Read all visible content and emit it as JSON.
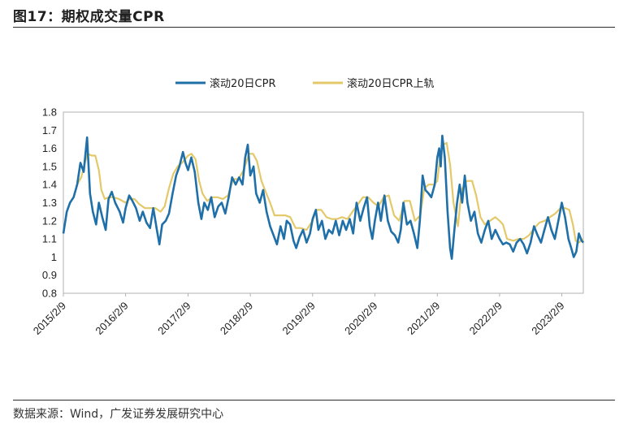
{
  "header": {
    "title": "图17：期权成交量CPR"
  },
  "footer": {
    "source": "数据来源：Wind，广发证券发展研究中心"
  },
  "colors": {
    "series1": "#1f6fa8",
    "series2": "#e3c96a",
    "axis": "#b0b0b0"
  },
  "chart_data": {
    "type": "line",
    "title": "",
    "xlabel": "",
    "ylabel": "",
    "ylim": [
      0.8,
      1.8
    ],
    "yticks": [
      0.8,
      0.9,
      1.0,
      1.1,
      1.2,
      1.3,
      1.4,
      1.5,
      1.6,
      1.7,
      1.8
    ],
    "ytick_labels": [
      "0.8",
      "0.9",
      "1",
      "1.1",
      "1.2",
      "1.3",
      "1.4",
      "1.5",
      "1.6",
      "1.7",
      "1.8"
    ],
    "xlim": [
      "2015/2/9",
      "2023/6/15"
    ],
    "xticks": [
      "2015/2/9",
      "2016/2/9",
      "2017/2/9",
      "2018/2/9",
      "2019/2/9",
      "2020/2/9",
      "2021/2/9",
      "2022/2/9",
      "2023/2/9"
    ],
    "legend_position": "top-center",
    "series": [
      {
        "name": "滚动20日CPR",
        "color": "#1f6fa8",
        "points": [
          [
            "2015/2/9",
            1.13
          ],
          [
            "2015/3/1",
            1.25
          ],
          [
            "2015/3/20",
            1.3
          ],
          [
            "2015/4/10",
            1.33
          ],
          [
            "2015/5/1",
            1.4
          ],
          [
            "2015/5/20",
            1.52
          ],
          [
            "2015/6/8",
            1.47
          ],
          [
            "2015/6/28",
            1.66
          ],
          [
            "2015/7/15",
            1.35
          ],
          [
            "2015/8/1",
            1.25
          ],
          [
            "2015/8/20",
            1.18
          ],
          [
            "2015/9/5",
            1.3
          ],
          [
            "2015/9/25",
            1.22
          ],
          [
            "2015/10/15",
            1.15
          ],
          [
            "2015/11/1",
            1.32
          ],
          [
            "2015/11/20",
            1.36
          ],
          [
            "2015/12/10",
            1.3
          ],
          [
            "2016/1/5",
            1.25
          ],
          [
            "2016/1/25",
            1.19
          ],
          [
            "2016/2/9",
            1.27
          ],
          [
            "2016/3/1",
            1.34
          ],
          [
            "2016/3/20",
            1.31
          ],
          [
            "2016/4/10",
            1.27
          ],
          [
            "2016/5/1",
            1.2
          ],
          [
            "2016/5/20",
            1.25
          ],
          [
            "2016/6/10",
            1.19
          ],
          [
            "2016/7/1",
            1.16
          ],
          [
            "2016/7/20",
            1.27
          ],
          [
            "2016/8/10",
            1.15
          ],
          [
            "2016/8/25",
            1.07
          ],
          [
            "2016/9/10",
            1.18
          ],
          [
            "2016/10/1",
            1.2
          ],
          [
            "2016/10/20",
            1.24
          ],
          [
            "2016/11/10",
            1.35
          ],
          [
            "2016/12/1",
            1.45
          ],
          [
            "2016/12/20",
            1.5
          ],
          [
            "2017/1/10",
            1.58
          ],
          [
            "2017/1/25",
            1.52
          ],
          [
            "2017/2/9",
            1.48
          ],
          [
            "2017/2/28",
            1.55
          ],
          [
            "2017/3/20",
            1.47
          ],
          [
            "2017/4/10",
            1.3
          ],
          [
            "2017/4/28",
            1.21
          ],
          [
            "2017/5/15",
            1.3
          ],
          [
            "2017/6/5",
            1.26
          ],
          [
            "2017/6/25",
            1.33
          ],
          [
            "2017/7/15",
            1.22
          ],
          [
            "2017/8/5",
            1.28
          ],
          [
            "2017/8/25",
            1.3
          ],
          [
            "2017/9/15",
            1.24
          ],
          [
            "2017/10/5",
            1.33
          ],
          [
            "2017/10/25",
            1.44
          ],
          [
            "2017/11/15",
            1.4
          ],
          [
            "2017/12/5",
            1.44
          ],
          [
            "2017/12/25",
            1.4
          ],
          [
            "2018/1/10",
            1.55
          ],
          [
            "2018/1/25",
            1.62
          ],
          [
            "2018/2/9",
            1.45
          ],
          [
            "2018/2/28",
            1.5
          ],
          [
            "2018/3/15",
            1.35
          ],
          [
            "2018/4/5",
            1.3
          ],
          [
            "2018/4/25",
            1.37
          ],
          [
            "2018/5/15",
            1.25
          ],
          [
            "2018/6/5",
            1.17
          ],
          [
            "2018/6/25",
            1.12
          ],
          [
            "2018/7/15",
            1.07
          ],
          [
            "2018/8/5",
            1.17
          ],
          [
            "2018/8/25",
            1.1
          ],
          [
            "2018/9/10",
            1.2
          ],
          [
            "2018/9/30",
            1.18
          ],
          [
            "2018/10/20",
            1.09
          ],
          [
            "2018/11/5",
            1.05
          ],
          [
            "2018/11/25",
            1.11
          ],
          [
            "2018/12/15",
            1.15
          ],
          [
            "2019/1/5",
            1.08
          ],
          [
            "2019/1/25",
            1.13
          ],
          [
            "2019/2/9",
            1.21
          ],
          [
            "2019/2/28",
            1.26
          ],
          [
            "2019/3/15",
            1.15
          ],
          [
            "2019/4/5",
            1.2
          ],
          [
            "2019/4/25",
            1.1
          ],
          [
            "2019/5/15",
            1.15
          ],
          [
            "2019/6/5",
            1.13
          ],
          [
            "2019/6/25",
            1.2
          ],
          [
            "2019/7/15",
            1.12
          ],
          [
            "2019/8/5",
            1.2
          ],
          [
            "2019/8/25",
            1.15
          ],
          [
            "2019/9/15",
            1.21
          ],
          [
            "2019/10/5",
            1.13
          ],
          [
            "2019/10/25",
            1.3
          ],
          [
            "2019/11/15",
            1.2
          ],
          [
            "2019/12/5",
            1.27
          ],
          [
            "2019/12/25",
            1.33
          ],
          [
            "2020/1/10",
            1.17
          ],
          [
            "2020/1/25",
            1.1
          ],
          [
            "2020/2/9",
            1.2
          ],
          [
            "2020/2/28",
            1.3
          ],
          [
            "2020/3/15",
            1.2
          ],
          [
            "2020/4/5",
            1.34
          ],
          [
            "2020/4/25",
            1.2
          ],
          [
            "2020/5/15",
            1.14
          ],
          [
            "2020/6/5",
            1.12
          ],
          [
            "2020/6/25",
            1.08
          ],
          [
            "2020/7/10",
            1.15
          ],
          [
            "2020/7/25",
            1.3
          ],
          [
            "2020/8/15",
            1.18
          ],
          [
            "2020/9/5",
            1.2
          ],
          [
            "2020/9/25",
            1.13
          ],
          [
            "2020/10/15",
            1.05
          ],
          [
            "2020/10/30",
            1.2
          ],
          [
            "2020/11/15",
            1.45
          ],
          [
            "2020/12/1",
            1.37
          ],
          [
            "2020/12/20",
            1.35
          ],
          [
            "2021/1/5",
            1.33
          ],
          [
            "2021/1/25",
            1.4
          ],
          [
            "2021/2/9",
            1.55
          ],
          [
            "2021/2/20",
            1.6
          ],
          [
            "2021/3/1",
            1.5
          ],
          [
            "2021/3/10",
            1.67
          ],
          [
            "2021/3/25",
            1.55
          ],
          [
            "2021/4/10",
            1.25
          ],
          [
            "2021/4/25",
            1.05
          ],
          [
            "2021/5/5",
            0.99
          ],
          [
            "2021/5/20",
            1.15
          ],
          [
            "2021/6/5",
            1.3
          ],
          [
            "2021/6/20",
            1.4
          ],
          [
            "2021/7/5",
            1.3
          ],
          [
            "2021/7/20",
            1.45
          ],
          [
            "2021/8/5",
            1.3
          ],
          [
            "2021/8/25",
            1.2
          ],
          [
            "2021/9/15",
            1.25
          ],
          [
            "2021/10/5",
            1.13
          ],
          [
            "2021/10/25",
            1.08
          ],
          [
            "2021/11/15",
            1.15
          ],
          [
            "2021/12/5",
            1.2
          ],
          [
            "2021/12/25",
            1.1
          ],
          [
            "2022/1/15",
            1.15
          ],
          [
            "2022/2/9",
            1.1
          ],
          [
            "2022/3/1",
            1.07
          ],
          [
            "2022/3/20",
            1.08
          ],
          [
            "2022/4/10",
            1.07
          ],
          [
            "2022/4/30",
            1.03
          ],
          [
            "2022/5/20",
            1.08
          ],
          [
            "2022/6/10",
            1.1
          ],
          [
            "2022/6/30",
            1.07
          ],
          [
            "2022/7/20",
            1.02
          ],
          [
            "2022/8/10",
            1.08
          ],
          [
            "2022/8/30",
            1.17
          ],
          [
            "2022/9/20",
            1.12
          ],
          [
            "2022/10/10",
            1.08
          ],
          [
            "2022/10/30",
            1.15
          ],
          [
            "2022/11/20",
            1.22
          ],
          [
            "2022/12/10",
            1.15
          ],
          [
            "2022/12/30",
            1.1
          ],
          [
            "2023/1/20",
            1.2
          ],
          [
            "2023/2/9",
            1.3
          ],
          [
            "2023/2/28",
            1.22
          ],
          [
            "2023/3/20",
            1.1
          ],
          [
            "2023/4/5",
            1.05
          ],
          [
            "2023/4/20",
            1.0
          ],
          [
            "2023/5/5",
            1.03
          ],
          [
            "2023/5/20",
            1.13
          ],
          [
            "2023/6/5",
            1.09
          ],
          [
            "2023/6/15",
            1.08
          ]
        ]
      },
      {
        "name": "滚动20日CPR上轨",
        "color": "#e3c96a",
        "points": [
          [
            "2015/4/25",
            1.39
          ],
          [
            "2015/5/25",
            1.44
          ],
          [
            "2015/6/15",
            1.52
          ],
          [
            "2015/7/1",
            1.57
          ],
          [
            "2015/7/25",
            1.56
          ],
          [
            "2015/8/15",
            1.56
          ],
          [
            "2015/9/5",
            1.48
          ],
          [
            "2015/9/20",
            1.37
          ],
          [
            "2015/10/10",
            1.32
          ],
          [
            "2015/11/1",
            1.33
          ],
          [
            "2015/12/1",
            1.33
          ],
          [
            "2016/1/1",
            1.32
          ],
          [
            "2016/2/9",
            1.3
          ],
          [
            "2016/3/1",
            1.32
          ],
          [
            "2016/4/1",
            1.32
          ],
          [
            "2016/5/1",
            1.29
          ],
          [
            "2016/6/1",
            1.27
          ],
          [
            "2016/7/1",
            1.27
          ],
          [
            "2016/8/1",
            1.27
          ],
          [
            "2016/9/1",
            1.25
          ],
          [
            "2016/9/25",
            1.28
          ],
          [
            "2016/10/20",
            1.38
          ],
          [
            "2016/11/15",
            1.46
          ],
          [
            "2016/12/10",
            1.5
          ],
          [
            "2017/1/5",
            1.52
          ],
          [
            "2017/2/9",
            1.56
          ],
          [
            "2017/3/1",
            1.57
          ],
          [
            "2017/3/25",
            1.54
          ],
          [
            "2017/4/15",
            1.42
          ],
          [
            "2017/5/5",
            1.35
          ],
          [
            "2017/6/1",
            1.31
          ],
          [
            "2017/7/1",
            1.33
          ],
          [
            "2017/8/1",
            1.33
          ],
          [
            "2017/9/1",
            1.32
          ],
          [
            "2017/10/1",
            1.34
          ],
          [
            "2017/11/1",
            1.43
          ],
          [
            "2017/12/1",
            1.43
          ],
          [
            "2018/1/1",
            1.48
          ],
          [
            "2018/2/1",
            1.57
          ],
          [
            "2018/2/25",
            1.57
          ],
          [
            "2018/3/20",
            1.53
          ],
          [
            "2018/4/15",
            1.42
          ],
          [
            "2018/5/10",
            1.36
          ],
          [
            "2018/6/5",
            1.3
          ],
          [
            "2018/7/1",
            1.23
          ],
          [
            "2018/8/1",
            1.23
          ],
          [
            "2018/9/1",
            1.23
          ],
          [
            "2018/10/1",
            1.22
          ],
          [
            "2018/11/1",
            1.16
          ],
          [
            "2018/12/1",
            1.16
          ],
          [
            "2019/1/5",
            1.15
          ],
          [
            "2019/2/9",
            1.2
          ],
          [
            "2019/3/1",
            1.26
          ],
          [
            "2019/4/1",
            1.26
          ],
          [
            "2019/5/1",
            1.22
          ],
          [
            "2019/6/1",
            1.21
          ],
          [
            "2019/7/1",
            1.21
          ],
          [
            "2019/8/1",
            1.22
          ],
          [
            "2019/9/1",
            1.21
          ],
          [
            "2019/10/1",
            1.25
          ],
          [
            "2019/11/1",
            1.29
          ],
          [
            "2019/12/1",
            1.33
          ],
          [
            "2020/1/1",
            1.33
          ],
          [
            "2020/2/1",
            1.3
          ],
          [
            "2020/3/1",
            1.28
          ],
          [
            "2020/4/1",
            1.33
          ],
          [
            "2020/5/1",
            1.34
          ],
          [
            "2020/6/1",
            1.23
          ],
          [
            "2020/7/1",
            1.2
          ],
          [
            "2020/8/1",
            1.31
          ],
          [
            "2020/9/1",
            1.31
          ],
          [
            "2020/10/1",
            1.2
          ],
          [
            "2020/11/1",
            1.23
          ],
          [
            "2020/11/25",
            1.38
          ],
          [
            "2020/12/20",
            1.4
          ],
          [
            "2021/1/20",
            1.4
          ],
          [
            "2021/2/9",
            1.42
          ],
          [
            "2021/2/25",
            1.55
          ],
          [
            "2021/3/15",
            1.62
          ],
          [
            "2021/4/5",
            1.63
          ],
          [
            "2021/4/25",
            1.51
          ],
          [
            "2021/5/15",
            1.3
          ],
          [
            "2021/6/10",
            1.17
          ],
          [
            "2021/7/1",
            1.37
          ],
          [
            "2021/8/1",
            1.42
          ],
          [
            "2021/9/1",
            1.42
          ],
          [
            "2021/9/25",
            1.34
          ],
          [
            "2021/10/20",
            1.22
          ],
          [
            "2021/11/15",
            1.18
          ],
          [
            "2021/12/15",
            1.2
          ],
          [
            "2022/1/15",
            1.22
          ],
          [
            "2022/2/9",
            1.2
          ],
          [
            "2022/3/1",
            1.18
          ],
          [
            "2022/3/25",
            1.1
          ],
          [
            "2022/5/1",
            1.09
          ],
          [
            "2022/6/1",
            1.1
          ],
          [
            "2022/7/1",
            1.1
          ],
          [
            "2022/8/1",
            1.12
          ],
          [
            "2022/9/1",
            1.16
          ],
          [
            "2022/10/1",
            1.19
          ],
          [
            "2022/11/1",
            1.2
          ],
          [
            "2022/12/1",
            1.22
          ],
          [
            "2023/1/1",
            1.24
          ],
          [
            "2023/2/1",
            1.27
          ],
          [
            "2023/3/1",
            1.27
          ],
          [
            "2023/3/25",
            1.26
          ],
          [
            "2023/4/15",
            1.18
          ],
          [
            "2023/5/1",
            1.09
          ],
          [
            "2023/5/20",
            1.08
          ],
          [
            "2023/6/15",
            1.1
          ]
        ]
      }
    ]
  }
}
